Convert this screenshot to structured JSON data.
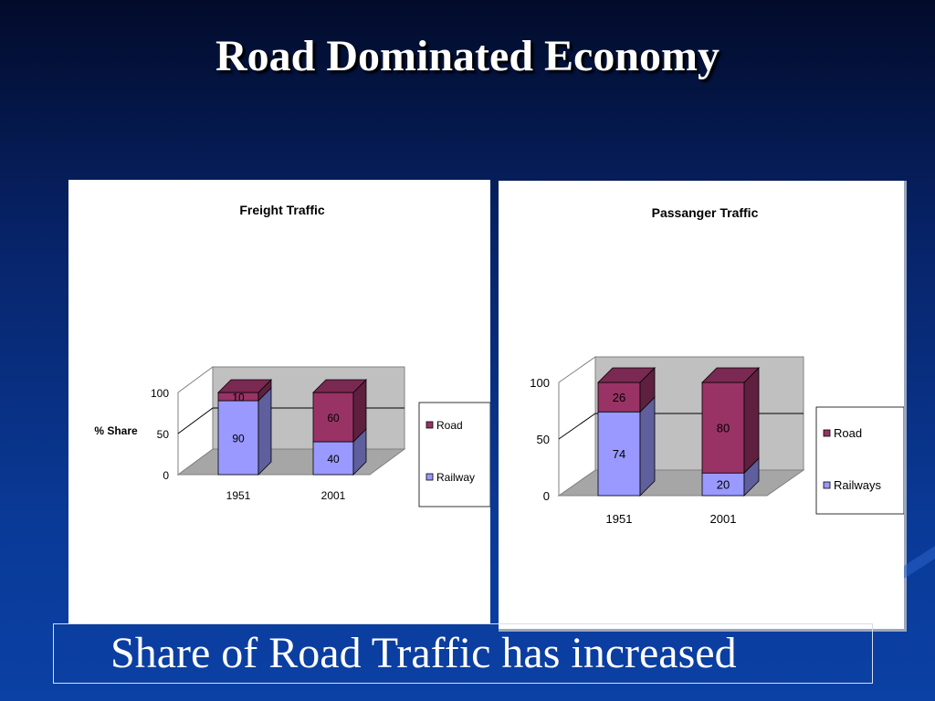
{
  "slide": {
    "title": "Road Dominated Economy",
    "caption": "Share of Road Traffic has increased"
  },
  "colors": {
    "road": "#993366",
    "railway": "#9999ff",
    "title_text": "#ffffff",
    "background": "#0a3a98"
  },
  "chart_data": [
    {
      "type": "bar",
      "stacked": true,
      "style": "3d",
      "title": "Freight Traffic",
      "ylabel": "% Share",
      "xlabel": "",
      "categories": [
        "1951",
        "2001"
      ],
      "series": [
        {
          "name": "Railway",
          "values": [
            90,
            40
          ]
        },
        {
          "name": "Road",
          "values": [
            10,
            60
          ]
        }
      ],
      "ylim": [
        0,
        100
      ],
      "yticks": [
        0,
        50,
        100
      ],
      "grid": true,
      "legend": "right"
    },
    {
      "type": "bar",
      "stacked": true,
      "style": "3d",
      "title": "Passanger Traffic",
      "ylabel": "",
      "xlabel": "",
      "categories": [
        "1951",
        "2001"
      ],
      "series": [
        {
          "name": "Railways",
          "values": [
            74,
            20
          ]
        },
        {
          "name": "Road",
          "values": [
            26,
            80
          ]
        }
      ],
      "ylim": [
        0,
        100
      ],
      "yticks": [
        0,
        50,
        100
      ],
      "grid": true,
      "legend": "right"
    }
  ]
}
